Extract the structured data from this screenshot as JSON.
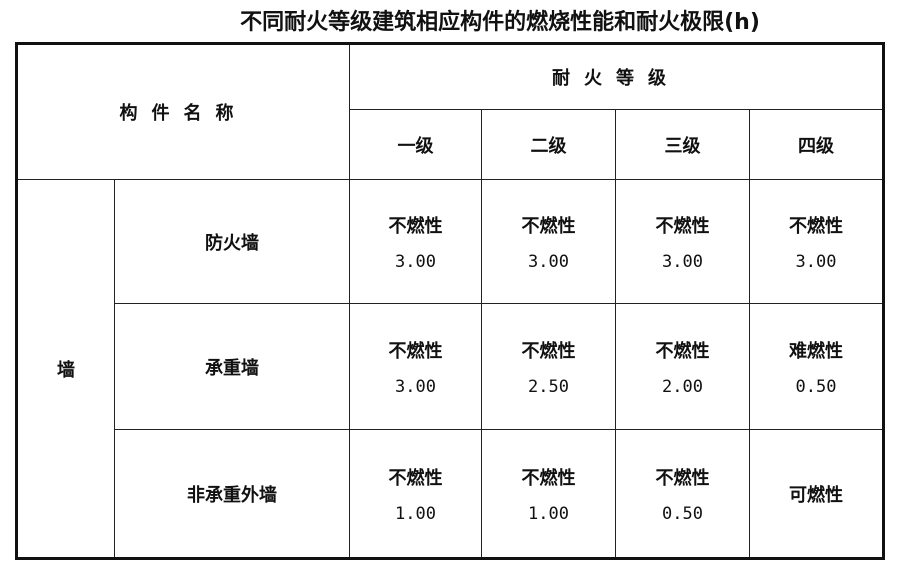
{
  "title": "不同耐火等级建筑相应构件的燃烧性能和耐火极限(h)",
  "header": {
    "component_name": "构件名称",
    "fire_rating": "耐火等级",
    "levels": [
      "一级",
      "二级",
      "三级",
      "四级"
    ]
  },
  "group": "墙",
  "rows": [
    {
      "name": "防火墙",
      "cells": [
        {
          "material": "不燃性",
          "limit": "3.00"
        },
        {
          "material": "不燃性",
          "limit": "3.00"
        },
        {
          "material": "不燃性",
          "limit": "3.00"
        },
        {
          "material": "不燃性",
          "limit": "3.00"
        }
      ]
    },
    {
      "name": "承重墙",
      "cells": [
        {
          "material": "不燃性",
          "limit": "3.00"
        },
        {
          "material": "不燃性",
          "limit": "2.50"
        },
        {
          "material": "不燃性",
          "limit": "2.00"
        },
        {
          "material": "难燃性",
          "limit": "0.50"
        }
      ]
    },
    {
      "name": "非承重外墙",
      "cells": [
        {
          "material": "不燃性",
          "limit": "1.00"
        },
        {
          "material": "不燃性",
          "limit": "1.00"
        },
        {
          "material": "不燃性",
          "limit": "0.50"
        },
        {
          "material": "可燃性"
        }
      ]
    }
  ]
}
